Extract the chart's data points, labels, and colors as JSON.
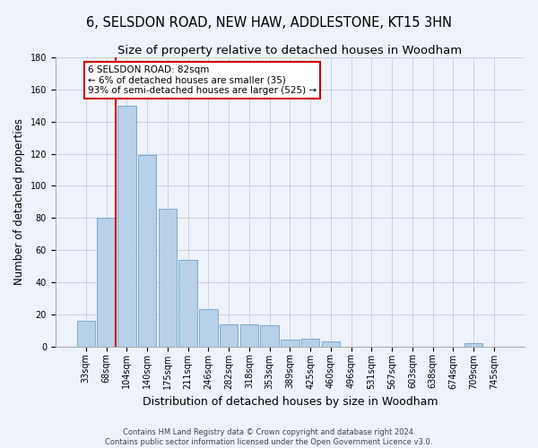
{
  "title": "6, SELSDON ROAD, NEW HAW, ADDLESTONE, KT15 3HN",
  "subtitle": "Size of property relative to detached houses in Woodham",
  "xlabel": "Distribution of detached houses by size in Woodham",
  "ylabel": "Number of detached properties",
  "footer_line1": "Contains HM Land Registry data © Crown copyright and database right 2024.",
  "footer_line2": "Contains public sector information licensed under the Open Government Licence v3.0.",
  "bar_labels": [
    "33sqm",
    "68sqm",
    "104sqm",
    "140sqm",
    "175sqm",
    "211sqm",
    "246sqm",
    "282sqm",
    "318sqm",
    "353sqm",
    "389sqm",
    "425sqm",
    "460sqm",
    "496sqm",
    "531sqm",
    "567sqm",
    "603sqm",
    "638sqm",
    "674sqm",
    "709sqm",
    "745sqm"
  ],
  "bar_values": [
    16,
    80,
    150,
    119,
    86,
    54,
    23,
    14,
    14,
    13,
    4,
    5,
    3,
    0,
    0,
    0,
    0,
    0,
    0,
    2,
    0
  ],
  "bar_color": "#b8d0e8",
  "bar_edge_color": "#7aaad0",
  "highlight_line_color": "#cc0000",
  "annotation_text": "6 SELSDON ROAD: 82sqm\n← 6% of detached houses are smaller (35)\n93% of semi-detached houses are larger (525) →",
  "annotation_box_color": "#ffffff",
  "annotation_box_edge": "#cc0000",
  "ylim": [
    0,
    180
  ],
  "yticks": [
    0,
    20,
    40,
    60,
    80,
    100,
    120,
    140,
    160,
    180
  ],
  "background_color": "#eef2fb",
  "grid_color": "#c8cfe0",
  "title_fontsize": 10.5,
  "subtitle_fontsize": 9.5,
  "xlabel_fontsize": 9,
  "ylabel_fontsize": 8.5,
  "tick_fontsize": 7,
  "annotation_fontsize": 7.5,
  "footer_fontsize": 6
}
